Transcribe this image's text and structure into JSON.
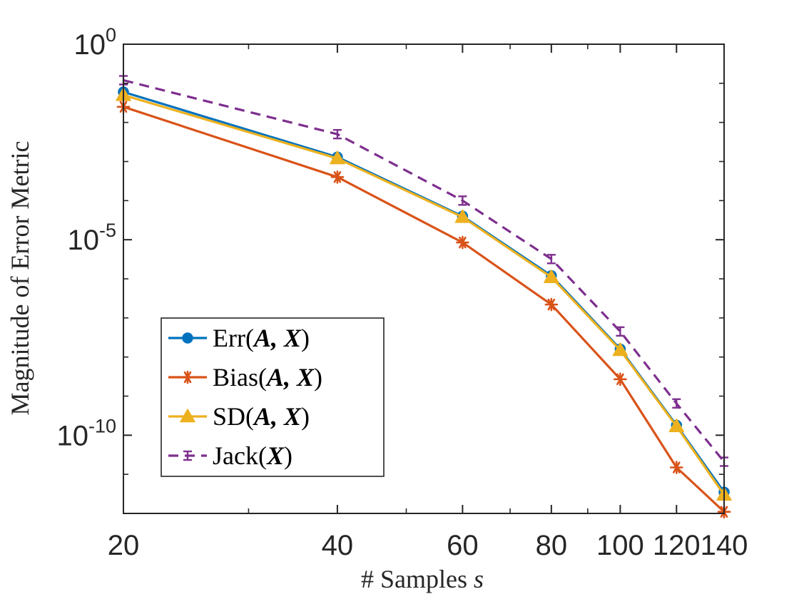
{
  "chart_data": {
    "type": "line",
    "xscale": "log",
    "yscale": "log",
    "x": [
      20,
      40,
      60,
      80,
      100,
      120,
      140
    ],
    "xlim": [
      20,
      140
    ],
    "ylim": [
      1e-12,
      1
    ],
    "xticks": [
      20,
      40,
      60,
      80,
      100,
      120,
      140
    ],
    "xtick_labels": [
      "20",
      "40",
      "60",
      "80",
      "100",
      "120",
      "140"
    ],
    "yticks": [
      {
        "value": 1,
        "base": "10",
        "exp": "0"
      },
      {
        "value": 1e-05,
        "base": "10",
        "exp": "-5"
      },
      {
        "value": 1e-10,
        "base": "10",
        "exp": "-10"
      }
    ],
    "xlabel": {
      "prefix": "# Samples ",
      "var": "s"
    },
    "ylabel": "Magnitude of Error Metric",
    "legend_position": "lower-left",
    "series": [
      {
        "name": "Err",
        "args": "A, X",
        "color": "#0072BD",
        "marker": "circle",
        "dashed": false,
        "values": [
          0.06,
          0.0013,
          4e-05,
          1.2e-06,
          1.6e-08,
          1.8e-10,
          3.5e-12
        ]
      },
      {
        "name": "Bias",
        "args": "A, X",
        "color": "#D95319",
        "marker": "asterisk",
        "dashed": false,
        "values": [
          0.025,
          0.0004,
          8.5e-06,
          2.2e-07,
          2.7e-09,
          1.5e-11,
          1.1e-12
        ]
      },
      {
        "name": "SD",
        "args": "A, X",
        "color": "#EDB120",
        "marker": "triangle",
        "dashed": false,
        "values": [
          0.05,
          0.0012,
          3.8e-05,
          1.1e-06,
          1.5e-08,
          1.7e-10,
          3e-12
        ]
      },
      {
        "name": "Jack",
        "args": "X",
        "color": "#7E2F8E",
        "marker": "errorbar",
        "dashed": true,
        "values": [
          0.12,
          0.005,
          0.0001,
          3.2e-06,
          4.5e-08,
          6.5e-10,
          2.1e-11
        ]
      }
    ]
  }
}
